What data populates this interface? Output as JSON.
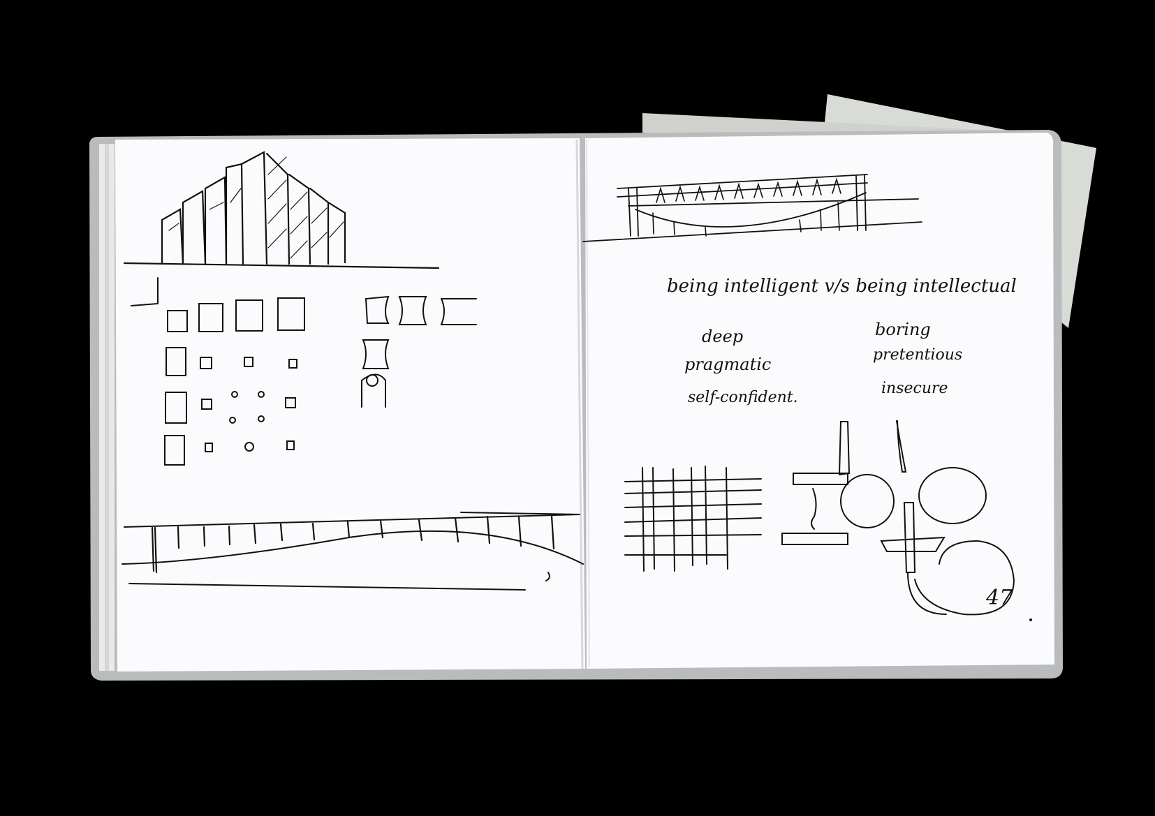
{
  "photo": {
    "subject": "open sketchbook spread with pen drawings",
    "colors": {
      "background": "#000000",
      "paper": "#fbfbfd",
      "cover": "#b9bcbd",
      "ink": "#111111",
      "loose_sheet": "#d7d9d6"
    }
  },
  "left_page": {
    "drawings": [
      "building-skyline-sketch",
      "square-grid-sketch",
      "curved-bridge-sketch"
    ]
  },
  "right_page": {
    "note_title": "being intelligent v/s being intellectual",
    "left_column": [
      "deep",
      "pragmatic",
      "self-confident."
    ],
    "right_column": [
      "boring",
      "pretentious",
      "insecure"
    ],
    "page_number": "47"
  }
}
